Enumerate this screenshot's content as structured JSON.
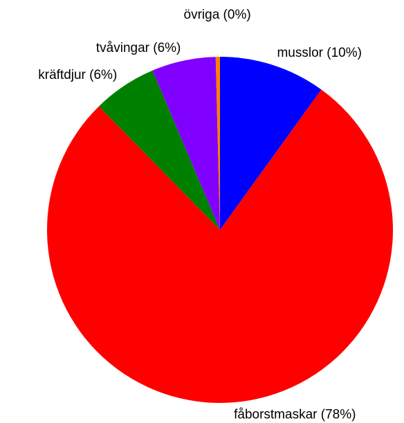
{
  "chart_data": {
    "type": "pie",
    "categories": [
      "musslor",
      "fåborstmaskar",
      "kräftdjur",
      "tvåvingar",
      "övriga"
    ],
    "values": [
      10,
      78,
      6,
      6,
      0.4
    ],
    "value_labels": [
      "musslor (10%)",
      "fåborstmaskar (78%)",
      "kräftdjur (6%)",
      "tvåvingar (6%)",
      "övriga (0%)"
    ],
    "colors": [
      "#0000ff",
      "#ff0000",
      "#008000",
      "#8000ff",
      "#ff8000"
    ]
  }
}
